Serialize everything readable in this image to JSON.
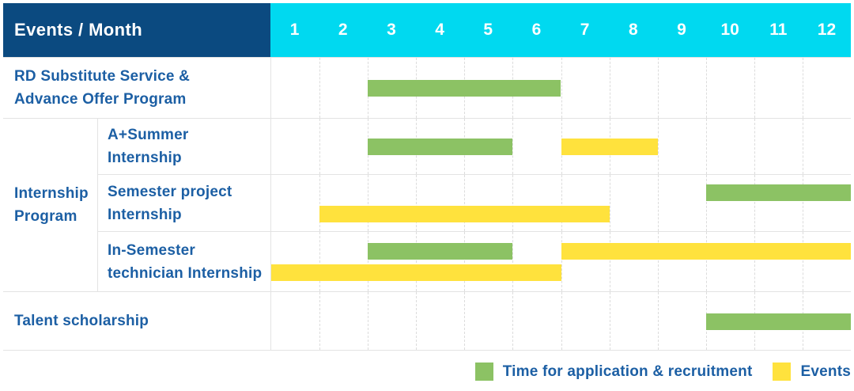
{
  "header": {
    "title": "Events / Month"
  },
  "chart_data": {
    "type": "gantt",
    "x_axis": {
      "label": "Month",
      "ticks": [
        "1",
        "2",
        "3",
        "4",
        "5",
        "6",
        "7",
        "8",
        "9",
        "10",
        "11",
        "12"
      ],
      "range": [
        1,
        12
      ]
    },
    "colors": {
      "application": "#8cc264",
      "events": "#ffe23d",
      "header_navy": "#0b4a80",
      "header_cyan": "#00d9f0",
      "label_text": "#1c5fa4"
    },
    "row_group": {
      "id": "internship-program",
      "label_lines": [
        "Internship",
        "Program"
      ]
    },
    "rows": [
      {
        "id": "rd-substitute-service",
        "label_lines": [
          "RD Substitute Service &",
          "Advance Offer Program"
        ],
        "lines": 1,
        "bars": [
          {
            "series": "application",
            "start_month": 3,
            "end_month": 6,
            "line": 0
          }
        ]
      },
      {
        "id": "a-plus-summer-internship",
        "label_lines": [
          "A+Summer",
          "Internship"
        ],
        "group": "internship-program",
        "lines": 1,
        "bars": [
          {
            "series": "application",
            "start_month": 3,
            "end_month": 5,
            "line": 0
          },
          {
            "series": "events",
            "start_month": 7,
            "end_month": 8,
            "line": 0
          }
        ]
      },
      {
        "id": "semester-project-internship",
        "label_lines": [
          "Semester project",
          "Internship"
        ],
        "group": "internship-program",
        "lines": 2,
        "bars": [
          {
            "series": "application",
            "start_month": 10,
            "end_month": 12,
            "line": 0
          },
          {
            "series": "events",
            "start_month": 2,
            "end_month": 7,
            "line": 1
          }
        ]
      },
      {
        "id": "in-semester-technician-internship",
        "label_lines": [
          "In-Semester",
          "technician Internship"
        ],
        "group": "internship-program",
        "lines": 2,
        "bars": [
          {
            "series": "application",
            "start_month": 3,
            "end_month": 5,
            "line": 0
          },
          {
            "series": "events",
            "start_month": 7,
            "end_month": 12,
            "line": 0
          },
          {
            "series": "events",
            "start_month": 1,
            "end_month": 6,
            "line": 1
          }
        ]
      },
      {
        "id": "talent-scholarship",
        "label_lines": [
          "Talent scholarship"
        ],
        "lines": 1,
        "bars": [
          {
            "series": "application",
            "start_month": 10,
            "end_month": 12,
            "line": 0
          }
        ]
      }
    ],
    "legend": {
      "position": "bottom-right",
      "items": [
        {
          "key": "application",
          "label": "Time for application & recruitment",
          "color": "#8cc264"
        },
        {
          "key": "events",
          "label": "Events",
          "color": "#ffe23d"
        }
      ]
    }
  }
}
